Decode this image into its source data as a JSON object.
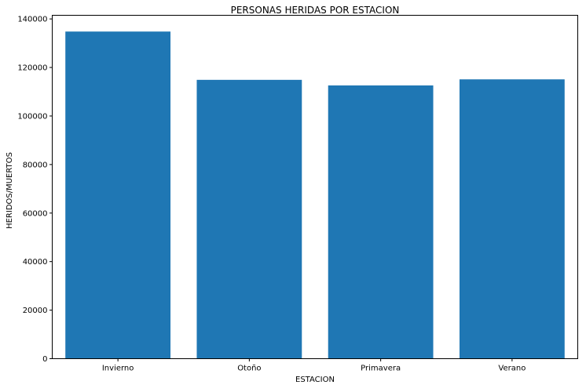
{
  "chart_data": {
    "type": "bar",
    "title": "PERSONAS HERIDAS POR ESTACION",
    "xlabel": "ESTACION",
    "ylabel": "HERIDOS/MUERTOS",
    "categories": [
      "Invierno",
      "Otoño",
      "Primavera",
      "Verano"
    ],
    "values": [
      134800,
      114900,
      112600,
      115100
    ],
    "ylim": [
      0,
      141500
    ],
    "yticks": [
      0,
      20000,
      40000,
      60000,
      80000,
      100000,
      120000,
      140000
    ],
    "bar_color": "#1f77b4",
    "grid": false
  }
}
